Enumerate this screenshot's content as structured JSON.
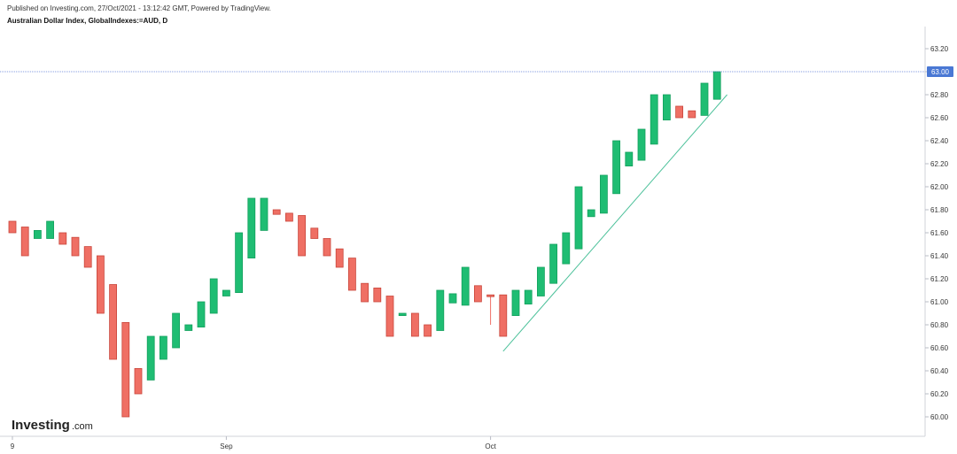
{
  "header": {
    "published": "Published on Investing.com, 27/Oct/2021 - 13:12:42 GMT, Powered by TradingView.",
    "symbol": "Australian Dollar Index, GlobalIndexes:=AUD, D"
  },
  "logo": {
    "main": "Investing",
    "sub": ".com"
  },
  "colors": {
    "up": "#1fbd73",
    "down": "#ef6f64",
    "trendline": "#4cc19a",
    "price_line": "#5b7bd6",
    "price_tag": "#4a78d4"
  },
  "chart_data": {
    "type": "candlestick",
    "ylim": [
      59.88,
      63.3
    ],
    "y_ticks": [
      "63.20",
      "63.00",
      "62.80",
      "62.60",
      "62.40",
      "62.20",
      "62.00",
      "61.80",
      "61.60",
      "61.40",
      "61.20",
      "61.00",
      "60.80",
      "60.60",
      "60.40",
      "60.20",
      "60.00"
    ],
    "x_ticks": [
      {
        "label": "9",
        "index": 0
      },
      {
        "label": "Sep",
        "index": 17
      },
      {
        "label": "Oct",
        "index": 38
      }
    ],
    "current_price": "63.00",
    "candles": [
      {
        "o": 61.7,
        "c": 61.6
      },
      {
        "o": 61.65,
        "c": 61.4
      },
      {
        "o": 61.55,
        "c": 61.62
      },
      {
        "o": 61.55,
        "c": 61.7
      },
      {
        "o": 61.6,
        "c": 61.5
      },
      {
        "o": 61.56,
        "c": 61.4
      },
      {
        "o": 61.48,
        "c": 61.3
      },
      {
        "o": 61.4,
        "c": 60.9
      },
      {
        "o": 61.15,
        "c": 60.5
      },
      {
        "o": 60.82,
        "c": 60.0
      },
      {
        "o": 60.42,
        "c": 60.2
      },
      {
        "o": 60.32,
        "c": 60.7
      },
      {
        "o": 60.5,
        "c": 60.7
      },
      {
        "o": 60.6,
        "c": 60.9
      },
      {
        "o": 60.75,
        "c": 60.8
      },
      {
        "o": 60.78,
        "c": 61.0
      },
      {
        "o": 60.9,
        "c": 61.2
      },
      {
        "o": 61.05,
        "c": 61.1
      },
      {
        "o": 61.08,
        "c": 61.6
      },
      {
        "o": 61.38,
        "c": 61.9
      },
      {
        "o": 61.62,
        "c": 61.9
      },
      {
        "o": 61.8,
        "c": 61.76
      },
      {
        "o": 61.77,
        "c": 61.7
      },
      {
        "o": 61.75,
        "c": 61.4
      },
      {
        "o": 61.64,
        "c": 61.55
      },
      {
        "o": 61.55,
        "c": 61.4
      },
      {
        "o": 61.46,
        "c": 61.3
      },
      {
        "o": 61.38,
        "c": 61.1
      },
      {
        "o": 61.16,
        "c": 61.0
      },
      {
        "o": 61.12,
        "c": 61.0
      },
      {
        "o": 61.05,
        "c": 60.7
      },
      {
        "o": 60.88,
        "c": 60.9
      },
      {
        "o": 60.9,
        "c": 60.7
      },
      {
        "o": 60.8,
        "c": 60.7
      },
      {
        "o": 60.75,
        "c": 61.1
      },
      {
        "o": 60.99,
        "c": 61.07
      },
      {
        "o": 60.97,
        "c": 61.3
      },
      {
        "o": 61.14,
        "c": 61.0
      },
      {
        "o": 61.06,
        "c": 61.05,
        "h": 61.06,
        "l": 60.8
      },
      {
        "o": 61.06,
        "c": 60.7
      },
      {
        "o": 60.88,
        "c": 61.1
      },
      {
        "o": 60.98,
        "c": 61.1
      },
      {
        "o": 61.05,
        "c": 61.3
      },
      {
        "o": 61.16,
        "c": 61.5
      },
      {
        "o": 61.33,
        "c": 61.6
      },
      {
        "o": 61.46,
        "c": 62.0
      },
      {
        "o": 61.74,
        "c": 61.8
      },
      {
        "o": 61.77,
        "c": 62.1
      },
      {
        "o": 61.94,
        "c": 62.4
      },
      {
        "o": 62.18,
        "c": 62.3
      },
      {
        "o": 62.23,
        "c": 62.5
      },
      {
        "o": 62.37,
        "c": 62.8
      },
      {
        "o": 62.58,
        "c": 62.8
      },
      {
        "o": 62.7,
        "c": 62.6
      },
      {
        "o": 62.66,
        "c": 62.6
      },
      {
        "o": 62.62,
        "c": 62.9
      },
      {
        "o": 62.76,
        "c": 63.0
      }
    ],
    "trendline": [
      {
        "index": 39,
        "value": 60.57
      },
      {
        "index": 56.8,
        "value": 62.8
      }
    ],
    "grid": false
  }
}
